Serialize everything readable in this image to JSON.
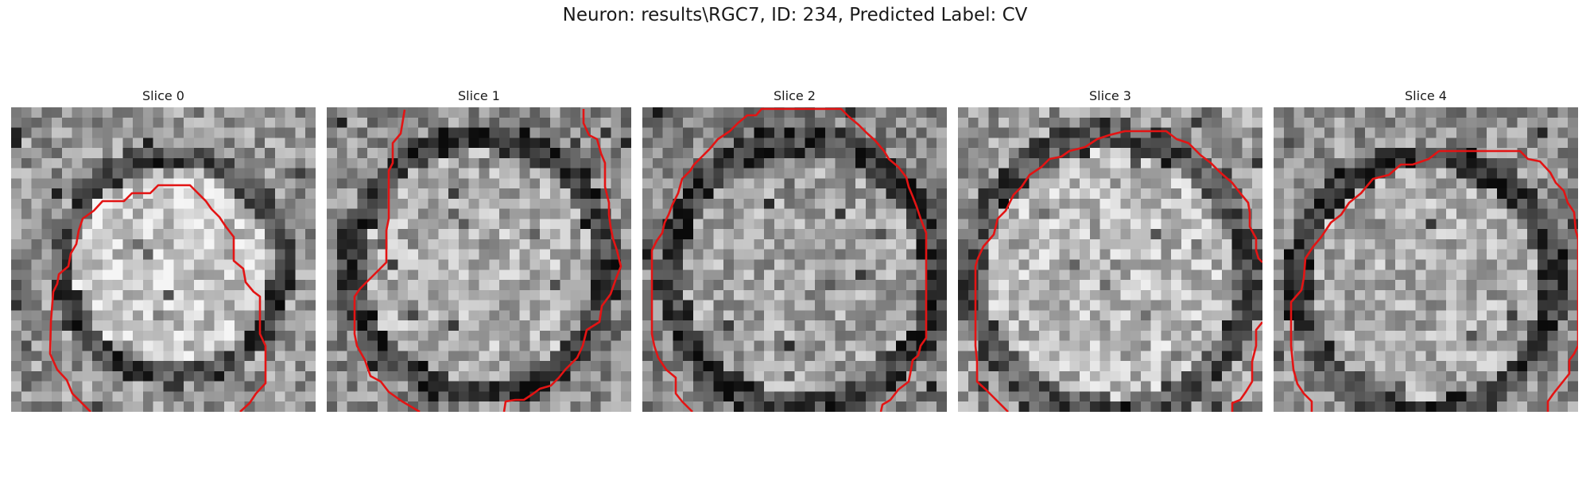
{
  "figure": {
    "title": "Neuron: results\\RGC7, ID: 234, Predicted Label: CV"
  },
  "colors": {
    "contour": "#e31414",
    "background": "#ffffff"
  },
  "panels": [
    {
      "label": "Slice 0",
      "seed": 11
    },
    {
      "label": "Slice 1",
      "seed": 23
    },
    {
      "label": "Slice 2",
      "seed": 37
    },
    {
      "label": "Slice 3",
      "seed": 41
    },
    {
      "label": "Slice 4",
      "seed": 53
    }
  ]
}
